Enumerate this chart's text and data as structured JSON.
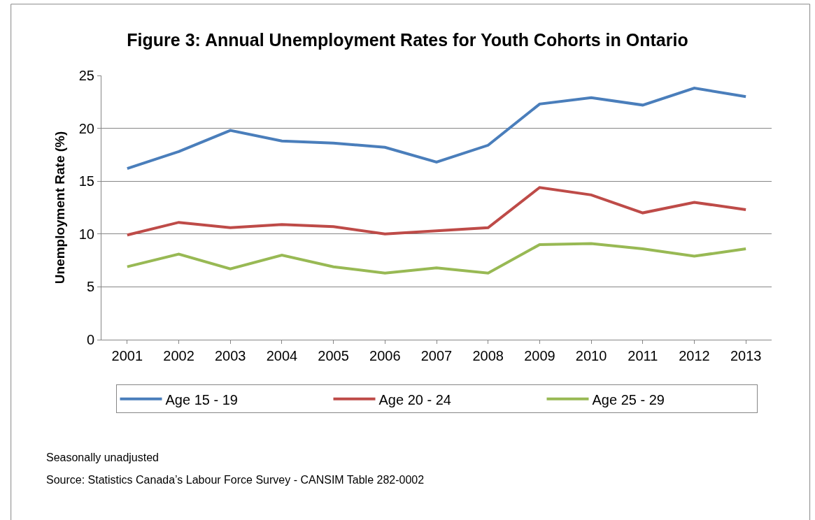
{
  "chart_data": {
    "type": "line",
    "title": "Figure 3: Annual Unemployment Rates for Youth Cohorts in Ontario",
    "ylabel": "Unemployment Rate (%)",
    "categories": [
      "2001",
      "2002",
      "2003",
      "2004",
      "2005",
      "2006",
      "2007",
      "2008",
      "2009",
      "2010",
      "2011",
      "2012",
      "2013"
    ],
    "series": [
      {
        "name": "Age 15 - 19",
        "color": "#4a7ebb",
        "values": [
          16.2,
          17.8,
          19.8,
          18.8,
          18.6,
          18.2,
          16.8,
          18.4,
          22.3,
          22.9,
          22.2,
          23.8,
          23.0
        ]
      },
      {
        "name": "Age 20 - 24",
        "color": "#be4b48",
        "values": [
          9.9,
          11.1,
          10.6,
          10.9,
          10.7,
          10.0,
          10.3,
          10.6,
          14.4,
          13.7,
          12.0,
          13.0,
          12.3
        ]
      },
      {
        "name": "Age 25 - 29",
        "color": "#98b954",
        "values": [
          6.9,
          8.1,
          6.7,
          8.0,
          6.9,
          6.3,
          6.8,
          6.3,
          9.0,
          9.1,
          8.6,
          7.9,
          8.6
        ]
      }
    ],
    "ylim": [
      0,
      25
    ],
    "yticks": [
      0,
      5,
      10,
      15,
      20,
      25
    ],
    "grid": "y",
    "legend": "bottom",
    "marker": "none",
    "line_style": "solid",
    "annotations": [
      "Seasonally unadjusted",
      "Source: Statistics Canada’s Labour Force Survey - CANSIM Table 282-0002"
    ]
  }
}
